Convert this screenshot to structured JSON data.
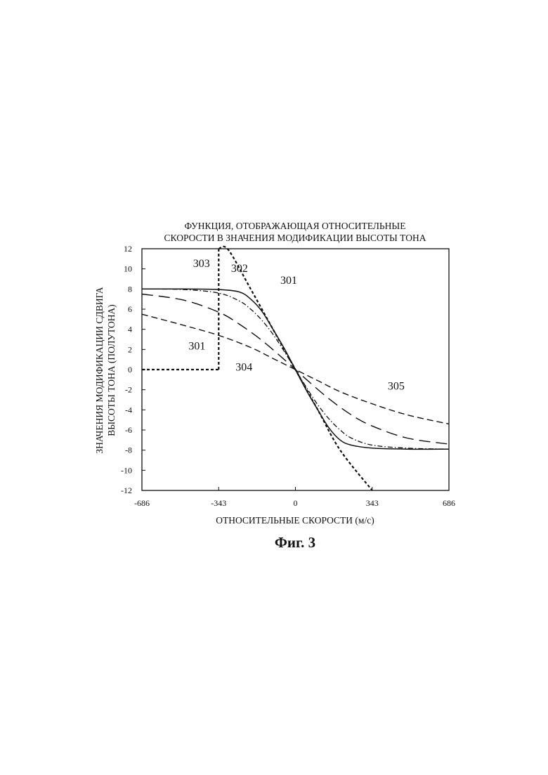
{
  "chart_data": {
    "type": "line",
    "title_lines": [
      "ФУНКЦИЯ, ОТОБРАЖАЮЩАЯ ОТНОСИТЕЛЬНЫЕ",
      "СКОРОСТИ В ЗНАЧЕНИЯ МОДИФИКАЦИИ ВЫСОТЫ ТОНА"
    ],
    "xlabel": "ОТНОСИТЕЛЬНЫЕ СКОРОСТИ (м/с)",
    "ylabel_lines": [
      "ЗНАЧЕНИЯ МОДИФИКАЦИИ СДВИГА",
      "ВЫСОТЫ ТОНА (ПОЛУТОНА)"
    ],
    "xlim": [
      -686,
      686
    ],
    "ylim": [
      -12,
      12
    ],
    "xticks": [
      "-686",
      "-343",
      "0",
      "343",
      "686"
    ],
    "yticks": [
      "12",
      "10",
      "8",
      "6",
      "4",
      "2",
      "0",
      "-2",
      "-4",
      "-6",
      "-8",
      "-10",
      "-12"
    ],
    "grid": false,
    "series": [
      {
        "name": "301",
        "style": "dotted-short",
        "x": [
          -686,
          -343,
          -343,
          -343
        ],
        "y": [
          0,
          0,
          12,
          0
        ],
        "segments": [
          {
            "x": [
              -686,
              -343
            ],
            "y": [
              0,
              0
            ]
          },
          {
            "x": [
              -343,
              -343
            ],
            "y": [
              0,
              12
            ]
          }
        ]
      },
      {
        "name": "301",
        "style": "dotted-short",
        "x": [
          -343,
          -300,
          -200,
          -100,
          0,
          100,
          200,
          343
        ],
        "y": [
          12,
          11.9,
          8.0,
          4.0,
          0,
          -4.0,
          -8.0,
          -12
        ]
      },
      {
        "name": "302",
        "style": "solid",
        "x": [
          -686,
          -500,
          -343,
          -250,
          -200,
          -150,
          -100,
          -50,
          0,
          50,
          100,
          150,
          200,
          250,
          343,
          500,
          686
        ],
        "y": [
          8.0,
          8.0,
          7.95,
          7.7,
          7.0,
          5.8,
          4.0,
          2.1,
          0,
          -2.1,
          -4.0,
          -5.8,
          -7.0,
          -7.5,
          -7.8,
          -7.9,
          -7.9
        ]
      },
      {
        "name": "303",
        "style": "dash-dot",
        "x": [
          -686,
          -500,
          -343,
          -250,
          -200,
          -150,
          -100,
          -50,
          0,
          50,
          100,
          150,
          200,
          250,
          343,
          500,
          686
        ],
        "y": [
          8.0,
          7.95,
          7.6,
          6.8,
          6.0,
          4.9,
          3.5,
          1.8,
          0,
          -1.8,
          -3.5,
          -4.9,
          -6.0,
          -6.8,
          -7.5,
          -7.8,
          -7.9
        ]
      },
      {
        "name": "304",
        "style": "long-dash",
        "x": [
          -686,
          -500,
          -343,
          -250,
          -150,
          -50,
          0,
          50,
          150,
          250,
          343,
          500,
          686
        ],
        "y": [
          7.5,
          6.9,
          5.7,
          4.5,
          2.9,
          1.0,
          0,
          -1.0,
          -2.9,
          -4.5,
          -5.6,
          -6.8,
          -7.4
        ]
      },
      {
        "name": "305",
        "style": "dash",
        "x": [
          -686,
          -500,
          -343,
          -200,
          -100,
          0,
          100,
          200,
          343,
          500,
          686
        ],
        "y": [
          5.5,
          4.4,
          3.4,
          2.2,
          1.1,
          0,
          -1.1,
          -2.2,
          -3.4,
          -4.5,
          -5.4
        ]
      }
    ],
    "annotations": [
      {
        "text": "301",
        "x": -440,
        "y": 2.0
      },
      {
        "text": "303",
        "x": -420,
        "y": 10.2
      },
      {
        "text": "302",
        "x": -250,
        "y": 9.7
      },
      {
        "text": "301",
        "x": -30,
        "y": 8.5
      },
      {
        "text": "304",
        "x": -230,
        "y": -0.1
      },
      {
        "text": "305",
        "x": 450,
        "y": -2.0
      }
    ],
    "caption": "Фиг. 3"
  }
}
